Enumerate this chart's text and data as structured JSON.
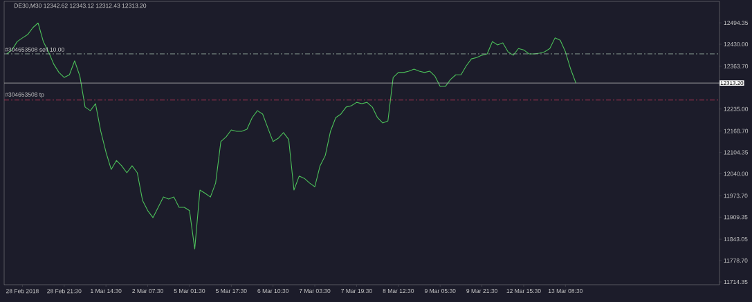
{
  "chart_data": {
    "type": "line",
    "title": "DE30,M30  12342.62 12343.12 12312.43 12313.20",
    "categories": [
      null,
      null,
      null,
      "28 Feb 2018",
      null,
      null,
      null,
      null,
      null,
      null,
      null,
      "28 Feb 21:30",
      null,
      null,
      null,
      null,
      null,
      null,
      null,
      "1 Mar 14:30",
      null,
      null,
      null,
      null,
      null,
      null,
      null,
      "2 Mar 07:30",
      null,
      null,
      null,
      null,
      null,
      null,
      null,
      "5 Mar 01:30",
      null,
      null,
      null,
      null,
      null,
      null,
      null,
      "5 Mar 17:30",
      null,
      null,
      null,
      null,
      null,
      null,
      null,
      "6 Mar 10:30",
      null,
      null,
      null,
      null,
      null,
      null,
      null,
      "7 Mar 03:30",
      null,
      null,
      null,
      null,
      null,
      null,
      null,
      "7 Mar 19:30",
      null,
      null,
      null,
      null,
      null,
      null,
      null,
      "8 Mar 12:30",
      null,
      null,
      null,
      null,
      null,
      null,
      null,
      "9 Mar 05:30",
      null,
      null,
      null,
      null,
      null,
      null,
      null,
      "9 Mar 21:30",
      null,
      null,
      null,
      null,
      null,
      null,
      null,
      "12 Mar 15:30",
      null,
      null,
      null,
      null,
      null,
      null,
      null,
      "13 Mar 08:30",
      null,
      null,
      null,
      null,
      null,
      null,
      null,
      null,
      null,
      null,
      null,
      null,
      null,
      null,
      null,
      null,
      null,
      null,
      null,
      null,
      null,
      null,
      null,
      null,
      null,
      null,
      null,
      null,
      null
    ],
    "series": [
      {
        "color": "#4cc05a",
        "values": [
          12401,
          12413,
          12438,
          12449,
          12459,
          12480,
          12494,
          12438,
          12407,
          12370,
          12345,
          12330,
          12338,
          12380,
          12334,
          12241,
          12230,
          12251,
          12168,
          12105,
          12053,
          12080,
          12064,
          12043,
          12064,
          12043,
          11960,
          11929,
          11908,
          11939,
          11970,
          11964,
          11970,
          11939,
          11939,
          11929,
          11814,
          11991,
          11981,
          11970,
          12012,
          12137,
          12151,
          12172,
          12168,
          12168,
          12174,
          12209,
          12230,
          12220,
          12178,
          12137,
          12147,
          12164,
          12143,
          11991,
          12033,
          12026,
          12012,
          12001,
          12064,
          12095,
          12168,
          12209,
          12220,
          12241,
          12245,
          12255,
          12251,
          12255,
          12241,
          12209,
          12193,
          12199,
          12330,
          12345,
          12345,
          12349,
          12355,
          12349,
          12345,
          12349,
          12334,
          12303,
          12303,
          12324,
          12338,
          12338,
          12365,
          12386,
          12390,
          12397,
          12401,
          12438,
          12428,
          12434,
          12407,
          12397,
          12417,
          12413,
          12401,
          12401,
          12403,
          12407,
          12417,
          12449,
          12442,
          12407,
          12355,
          12313,
          null,
          null,
          null,
          null,
          null,
          null,
          null,
          null,
          null,
          null,
          null,
          null,
          null,
          null,
          null,
          null,
          null,
          null,
          null,
          null,
          null,
          null,
          null,
          null,
          null,
          null,
          null
        ]
      }
    ],
    "ylim": [
      11706,
      12559
    ],
    "yticks": [
      11714.35,
      {
        "value": 11778.7,
        "label": "11778.70"
      },
      11843.05,
      11909.35,
      {
        "value": 11973.7,
        "label": "11973.70"
      },
      {
        "value": 12040,
        "label": "12040.00"
      },
      12104.35,
      {
        "value": 12168.7,
        "label": "12168.70"
      },
      {
        "value": 12235,
        "label": "12235.00"
      },
      {
        "value": 12363.7,
        "label": "12363.70"
      },
      {
        "value": 12430,
        "label": "12430.00"
      },
      12494.35
    ],
    "ref_lines": [
      {
        "axis": "y",
        "value": 12401,
        "label": "#304653508 sell 10.00",
        "color": "#9fb8a8",
        "line_style": "dashed"
      },
      {
        "axis": "y",
        "value": 12262,
        "label": "#304653508 tp",
        "color": "#c8385a",
        "line_style": "dashed"
      },
      {
        "axis": "y",
        "value": 12313.2,
        "label": "12313.20",
        "color": "#b8b8b8",
        "line_style": "solid"
      }
    ],
    "grid": false,
    "line_style": "solid"
  }
}
